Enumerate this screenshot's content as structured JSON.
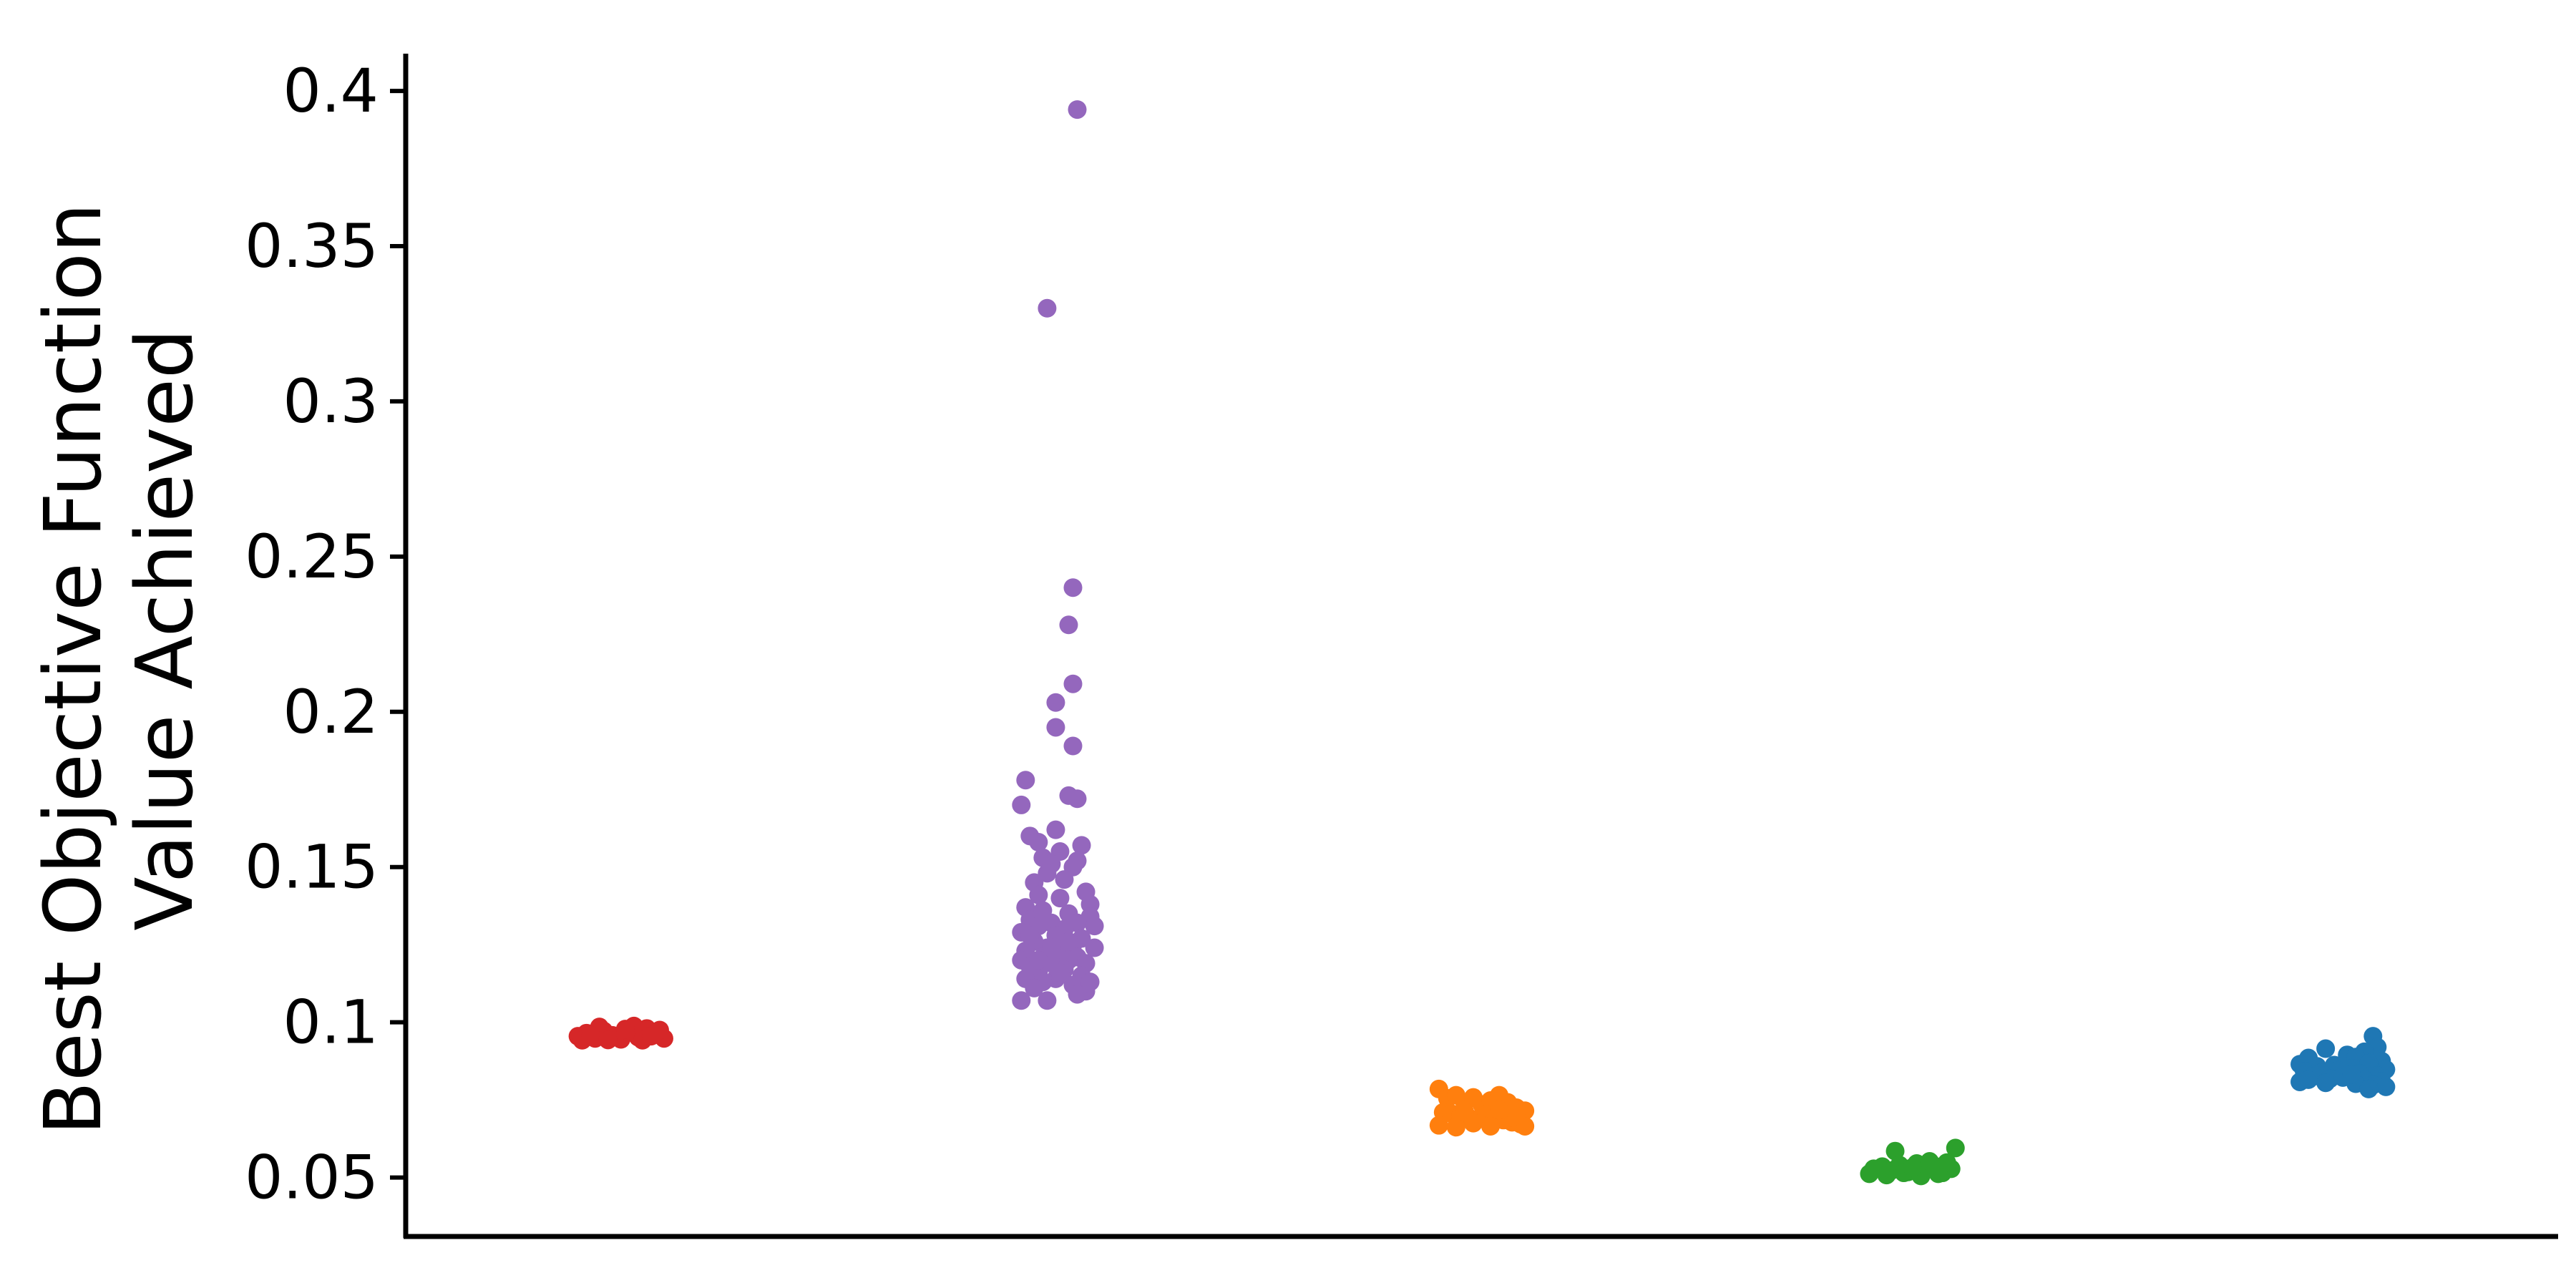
{
  "chart_data": {
    "type": "scatter",
    "subtype": "strip-plot",
    "title": "",
    "xlabel": "",
    "ylabel_lines": [
      "Best Objective Function",
      "Value Achieved"
    ],
    "yticks": [
      "0.05",
      "0.1",
      "0.15",
      "0.2",
      "0.25",
      "0.3",
      "0.35",
      "0.4"
    ],
    "ylim": [
      0.031,
      0.412
    ],
    "xlim": [
      -0.5,
      4.5
    ],
    "grid": false,
    "legend": "none",
    "series": [
      {
        "color": "#d62728",
        "x_center": 0,
        "points": [
          {
            "dx": -0.1,
            "y": 0.0955
          },
          {
            "dx": -0.08,
            "y": 0.0965
          },
          {
            "dx": -0.06,
            "y": 0.0948
          },
          {
            "dx": -0.04,
            "y": 0.0972
          },
          {
            "dx": -0.02,
            "y": 0.0958
          },
          {
            "dx": 0.0,
            "y": 0.0945
          },
          {
            "dx": 0.02,
            "y": 0.0968
          },
          {
            "dx": 0.04,
            "y": 0.0952
          },
          {
            "dx": 0.06,
            "y": 0.098
          },
          {
            "dx": 0.08,
            "y": 0.0962
          },
          {
            "dx": 0.1,
            "y": 0.0948
          },
          {
            "dx": 0.09,
            "y": 0.0975
          },
          {
            "dx": -0.09,
            "y": 0.0942
          },
          {
            "dx": -0.05,
            "y": 0.0985
          },
          {
            "dx": 0.03,
            "y": 0.0988
          },
          {
            "dx": 0.05,
            "y": 0.0942
          },
          {
            "dx": -0.07,
            "y": 0.0958
          },
          {
            "dx": 0.07,
            "y": 0.0955
          },
          {
            "dx": -0.03,
            "y": 0.0943
          },
          {
            "dx": 0.01,
            "y": 0.0978
          }
        ]
      },
      {
        "color": "#9467bd",
        "x_center": 1,
        "points": [
          {
            "dx": 0.06,
            "y": 0.394
          },
          {
            "dx": -0.01,
            "y": 0.33
          },
          {
            "dx": 0.05,
            "y": 0.24
          },
          {
            "dx": 0.04,
            "y": 0.228
          },
          {
            "dx": 0.05,
            "y": 0.209
          },
          {
            "dx": 0.01,
            "y": 0.203
          },
          {
            "dx": 0.01,
            "y": 0.195
          },
          {
            "dx": 0.05,
            "y": 0.189
          },
          {
            "dx": -0.06,
            "y": 0.178
          },
          {
            "dx": 0.04,
            "y": 0.173
          },
          {
            "dx": 0.06,
            "y": 0.172
          },
          {
            "dx": -0.07,
            "y": 0.17
          },
          {
            "dx": 0.01,
            "y": 0.162
          },
          {
            "dx": -0.05,
            "y": 0.16
          },
          {
            "dx": -0.03,
            "y": 0.158
          },
          {
            "dx": 0.07,
            "y": 0.157
          },
          {
            "dx": 0.02,
            "y": 0.155
          },
          {
            "dx": -0.02,
            "y": 0.153
          },
          {
            "dx": 0.06,
            "y": 0.152
          },
          {
            "dx": 0.0,
            "y": 0.151
          },
          {
            "dx": 0.05,
            "y": 0.15
          },
          {
            "dx": -0.01,
            "y": 0.148
          },
          {
            "dx": 0.03,
            "y": 0.146
          },
          {
            "dx": -0.04,
            "y": 0.145
          },
          {
            "dx": 0.08,
            "y": 0.142
          },
          {
            "dx": -0.03,
            "y": 0.141
          },
          {
            "dx": 0.02,
            "y": 0.14
          },
          {
            "dx": 0.09,
            "y": 0.138
          },
          {
            "dx": -0.06,
            "y": 0.137
          },
          {
            "dx": -0.02,
            "y": 0.136
          },
          {
            "dx": 0.04,
            "y": 0.135
          },
          {
            "dx": 0.09,
            "y": 0.134
          },
          {
            "dx": -0.05,
            "y": 0.133
          },
          {
            "dx": 0.0,
            "y": 0.132
          },
          {
            "dx": 0.06,
            "y": 0.132
          },
          {
            "dx": -0.03,
            "y": 0.131
          },
          {
            "dx": 0.1,
            "y": 0.131
          },
          {
            "dx": 0.03,
            "y": 0.13
          },
          {
            "dx": -0.07,
            "y": 0.129
          },
          {
            "dx": 0.01,
            "y": 0.128
          },
          {
            "dx": 0.07,
            "y": 0.127
          },
          {
            "dx": -0.04,
            "y": 0.126
          },
          {
            "dx": 0.05,
            "y": 0.125
          },
          {
            "dx": -0.01,
            "y": 0.124
          },
          {
            "dx": 0.1,
            "y": 0.124
          },
          {
            "dx": -0.06,
            "y": 0.123
          },
          {
            "dx": 0.02,
            "y": 0.122
          },
          {
            "dx": 0.06,
            "y": 0.121
          },
          {
            "dx": -0.02,
            "y": 0.121
          },
          {
            "dx": 0.04,
            "y": 0.12
          },
          {
            "dx": -0.07,
            "y": 0.12
          },
          {
            "dx": 0.08,
            "y": 0.119
          },
          {
            "dx": 0.0,
            "y": 0.119
          },
          {
            "dx": -0.05,
            "y": 0.118
          },
          {
            "dx": 0.03,
            "y": 0.117
          },
          {
            "dx": -0.03,
            "y": 0.116
          },
          {
            "dx": 0.07,
            "y": 0.115
          },
          {
            "dx": -0.06,
            "y": 0.114
          },
          {
            "dx": 0.01,
            "y": 0.114
          },
          {
            "dx": -0.02,
            "y": 0.113
          },
          {
            "dx": 0.05,
            "y": 0.112
          },
          {
            "dx": -0.04,
            "y": 0.111
          },
          {
            "dx": 0.08,
            "y": 0.11
          },
          {
            "dx": 0.06,
            "y": 0.109
          },
          {
            "dx": -0.07,
            "y": 0.107
          },
          {
            "dx": -0.01,
            "y": 0.107
          },
          {
            "dx": 0.02,
            "y": 0.116
          },
          {
            "dx": 0.09,
            "y": 0.113
          },
          {
            "dx": -0.05,
            "y": 0.128
          },
          {
            "dx": 0.04,
            "y": 0.126
          },
          {
            "dx": -0.03,
            "y": 0.12
          },
          {
            "dx": 0.0,
            "y": 0.124
          }
        ]
      },
      {
        "color": "#ff7f0e",
        "x_center": 2,
        "points": [
          {
            "dx": -0.1,
            "y": 0.0785
          },
          {
            "dx": -0.08,
            "y": 0.0755
          },
          {
            "dx": -0.06,
            "y": 0.0765
          },
          {
            "dx": -0.04,
            "y": 0.074
          },
          {
            "dx": -0.02,
            "y": 0.0758
          },
          {
            "dx": 0.0,
            "y": 0.0735
          },
          {
            "dx": 0.02,
            "y": 0.0748
          },
          {
            "dx": 0.04,
            "y": 0.0765
          },
          {
            "dx": 0.06,
            "y": 0.0742
          },
          {
            "dx": 0.08,
            "y": 0.0725
          },
          {
            "dx": 0.1,
            "y": 0.0715
          },
          {
            "dx": -0.09,
            "y": 0.071
          },
          {
            "dx": -0.07,
            "y": 0.0705
          },
          {
            "dx": -0.05,
            "y": 0.0698
          },
          {
            "dx": -0.03,
            "y": 0.0692
          },
          {
            "dx": -0.01,
            "y": 0.0688
          },
          {
            "dx": 0.01,
            "y": 0.0702
          },
          {
            "dx": 0.03,
            "y": 0.0695
          },
          {
            "dx": 0.05,
            "y": 0.0685
          },
          {
            "dx": 0.07,
            "y": 0.0678
          },
          {
            "dx": 0.09,
            "y": 0.0672
          },
          {
            "dx": -0.1,
            "y": 0.0668
          },
          {
            "dx": -0.06,
            "y": 0.0662
          },
          {
            "dx": -0.02,
            "y": 0.0675
          },
          {
            "dx": 0.02,
            "y": 0.0665
          },
          {
            "dx": 0.06,
            "y": 0.0692
          },
          {
            "dx": 0.1,
            "y": 0.0665
          },
          {
            "dx": -0.04,
            "y": 0.0712
          },
          {
            "dx": 0.04,
            "y": 0.0718
          },
          {
            "dx": 0.08,
            "y": 0.0698
          }
        ]
      },
      {
        "color": "#2ca02c",
        "x_center": 3,
        "points": [
          {
            "dx": -0.04,
            "y": 0.0585
          },
          {
            "dx": 0.1,
            "y": 0.0595
          },
          {
            "dx": -0.09,
            "y": 0.0528
          },
          {
            "dx": -0.07,
            "y": 0.0535
          },
          {
            "dx": -0.05,
            "y": 0.0522
          },
          {
            "dx": -0.03,
            "y": 0.054
          },
          {
            "dx": -0.01,
            "y": 0.0518
          },
          {
            "dx": 0.01,
            "y": 0.0545
          },
          {
            "dx": 0.03,
            "y": 0.0525
          },
          {
            "dx": 0.05,
            "y": 0.0538
          },
          {
            "dx": 0.07,
            "y": 0.0515
          },
          {
            "dx": 0.09,
            "y": 0.0528
          },
          {
            "dx": -0.1,
            "y": 0.0512
          },
          {
            "dx": -0.06,
            "y": 0.0508
          },
          {
            "dx": -0.02,
            "y": 0.0515
          },
          {
            "dx": 0.02,
            "y": 0.0505
          },
          {
            "dx": 0.06,
            "y": 0.0512
          },
          {
            "dx": 0.08,
            "y": 0.0548
          },
          {
            "dx": 0.0,
            "y": 0.0532
          },
          {
            "dx": 0.04,
            "y": 0.0552
          }
        ]
      },
      {
        "color": "#1f77b4",
        "x_center": 4,
        "points": [
          {
            "dx": 0.07,
            "y": 0.0955
          },
          {
            "dx": -0.04,
            "y": 0.0915
          },
          {
            "dx": 0.08,
            "y": 0.092
          },
          {
            "dx": 0.05,
            "y": 0.0905
          },
          {
            "dx": 0.01,
            "y": 0.0895
          },
          {
            "dx": -0.08,
            "y": 0.0885
          },
          {
            "dx": 0.03,
            "y": 0.0888
          },
          {
            "dx": 0.09,
            "y": 0.0875
          },
          {
            "dx": -0.1,
            "y": 0.0865
          },
          {
            "dx": -0.06,
            "y": 0.0858
          },
          {
            "dx": -0.02,
            "y": 0.0862
          },
          {
            "dx": 0.02,
            "y": 0.0852
          },
          {
            "dx": 0.06,
            "y": 0.0868
          },
          {
            "dx": 0.1,
            "y": 0.0848
          },
          {
            "dx": -0.09,
            "y": 0.0842
          },
          {
            "dx": -0.05,
            "y": 0.0838
          },
          {
            "dx": -0.01,
            "y": 0.0845
          },
          {
            "dx": 0.04,
            "y": 0.0835
          },
          {
            "dx": 0.08,
            "y": 0.0828
          },
          {
            "dx": -0.07,
            "y": 0.0825
          },
          {
            "dx": -0.03,
            "y": 0.0818
          },
          {
            "dx": 0.0,
            "y": 0.0822
          },
          {
            "dx": 0.05,
            "y": 0.0815
          },
          {
            "dx": 0.09,
            "y": 0.081
          },
          {
            "dx": -0.1,
            "y": 0.0808
          },
          {
            "dx": -0.04,
            "y": 0.0805
          },
          {
            "dx": 0.03,
            "y": 0.0802
          },
          {
            "dx": 0.07,
            "y": 0.0798
          },
          {
            "dx": 0.1,
            "y": 0.0792
          },
          {
            "dx": 0.06,
            "y": 0.0785
          },
          {
            "dx": -0.08,
            "y": 0.0815
          },
          {
            "dx": 0.02,
            "y": 0.0832
          }
        ]
      }
    ]
  }
}
